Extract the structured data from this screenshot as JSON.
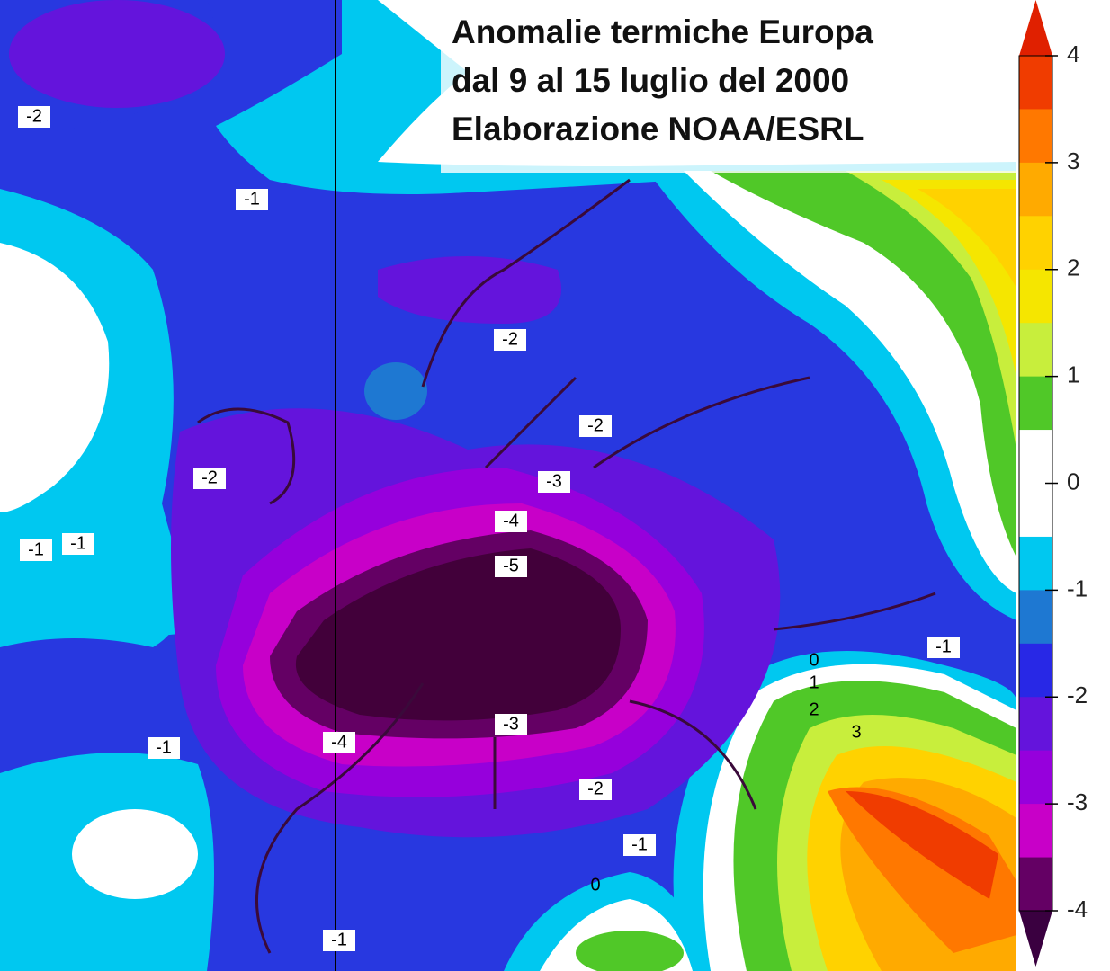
{
  "title": [
    "Anomalie termiche Europa",
    "dal 9 al 15 luglio del 2000",
    "Elaborazione NOAA/ESRL"
  ],
  "colorbar": {
    "lim": [
      -4,
      4
    ],
    "ticks": [
      4,
      3,
      2,
      1,
      0,
      -1,
      -2,
      -3,
      -4
    ],
    "over": "#e02000",
    "under": "#3a0040",
    "colors": [
      "#f03c00",
      "#ff7800",
      "#ffaa00",
      "#ffd200",
      "#f5e600",
      "#c8ee3c",
      "#50c828",
      "#ffffff",
      "#ffffff",
      "#00c8f0",
      "#1e78d2",
      "#2828e6",
      "#6414dc",
      "#9600dc",
      "#c800c8",
      "#640064"
    ]
  },
  "contour_labels": [
    -2,
    -1,
    -2,
    -2,
    -2,
    -3,
    -4,
    -5,
    -1,
    -1,
    -1,
    -1,
    -4,
    -3,
    -2,
    -1,
    -1,
    0,
    1,
    2,
    3,
    0
  ]
}
